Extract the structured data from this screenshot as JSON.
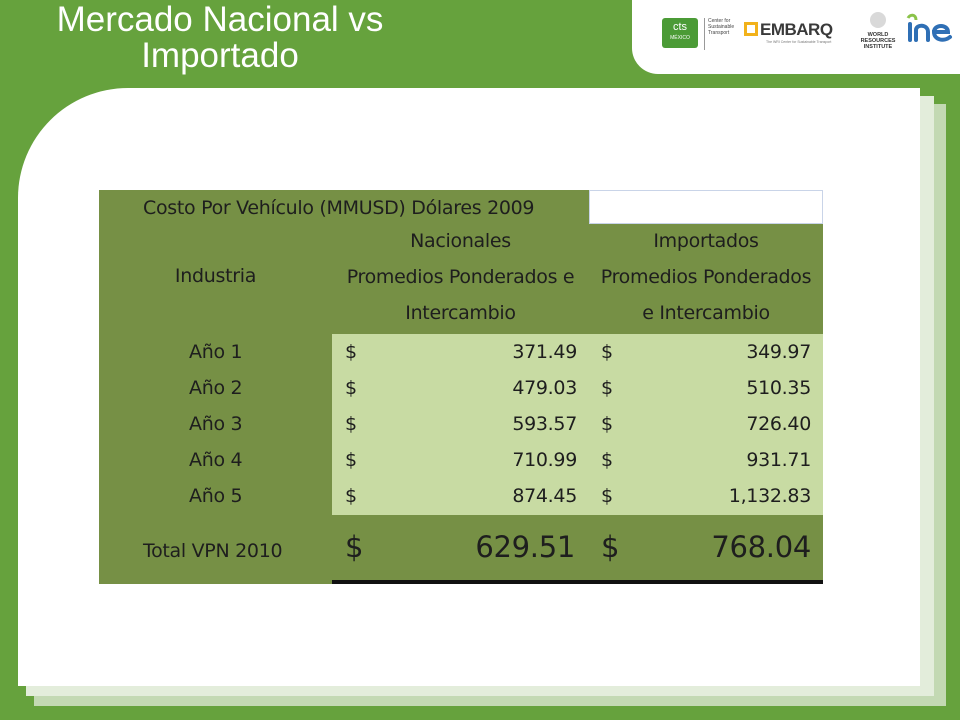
{
  "slide": {
    "title_line1": "Mercado Nacional vs",
    "title_line2": "Importado"
  },
  "logos": {
    "cts_text": "cts",
    "cts_sub": "MÉXICO",
    "cts_caption": "Center for Sustainable Transport",
    "embarq_text": "EMBARQ",
    "embarq_caption": "The WRI Center for Sustainable Transport",
    "wri_text": "WORLD RESOURCES INSTITUTE",
    "ine_text": "ine"
  },
  "table": {
    "caption": "Costo Por Vehículo (MMUSD) Dólares 2009",
    "col_industria": "Industria",
    "col_nacionales": [
      "Nacionales",
      "Promedios Ponderados e",
      "Intercambio"
    ],
    "col_importados": [
      "Importados",
      "Promedios Ponderados",
      "e Intercambio"
    ],
    "currency": "$",
    "rows": [
      {
        "label": "Año 1",
        "nacional": "371.49",
        "importado": "349.97"
      },
      {
        "label": "Año 2",
        "nacional": "479.03",
        "importado": "510.35"
      },
      {
        "label": "Año 3",
        "nacional": "593.57",
        "importado": "726.40"
      },
      {
        "label": "Año 4",
        "nacional": "710.99",
        "importado": "931.71"
      },
      {
        "label": "Año 5",
        "nacional": "874.45",
        "importado": "1,132.83"
      }
    ],
    "total": {
      "label": "Total VPN 2010",
      "nacional": "629.51",
      "importado": "768.04"
    }
  },
  "colors": {
    "background_green": "#66a23d",
    "table_dark": "#769045",
    "table_light": "#c8dba3"
  }
}
